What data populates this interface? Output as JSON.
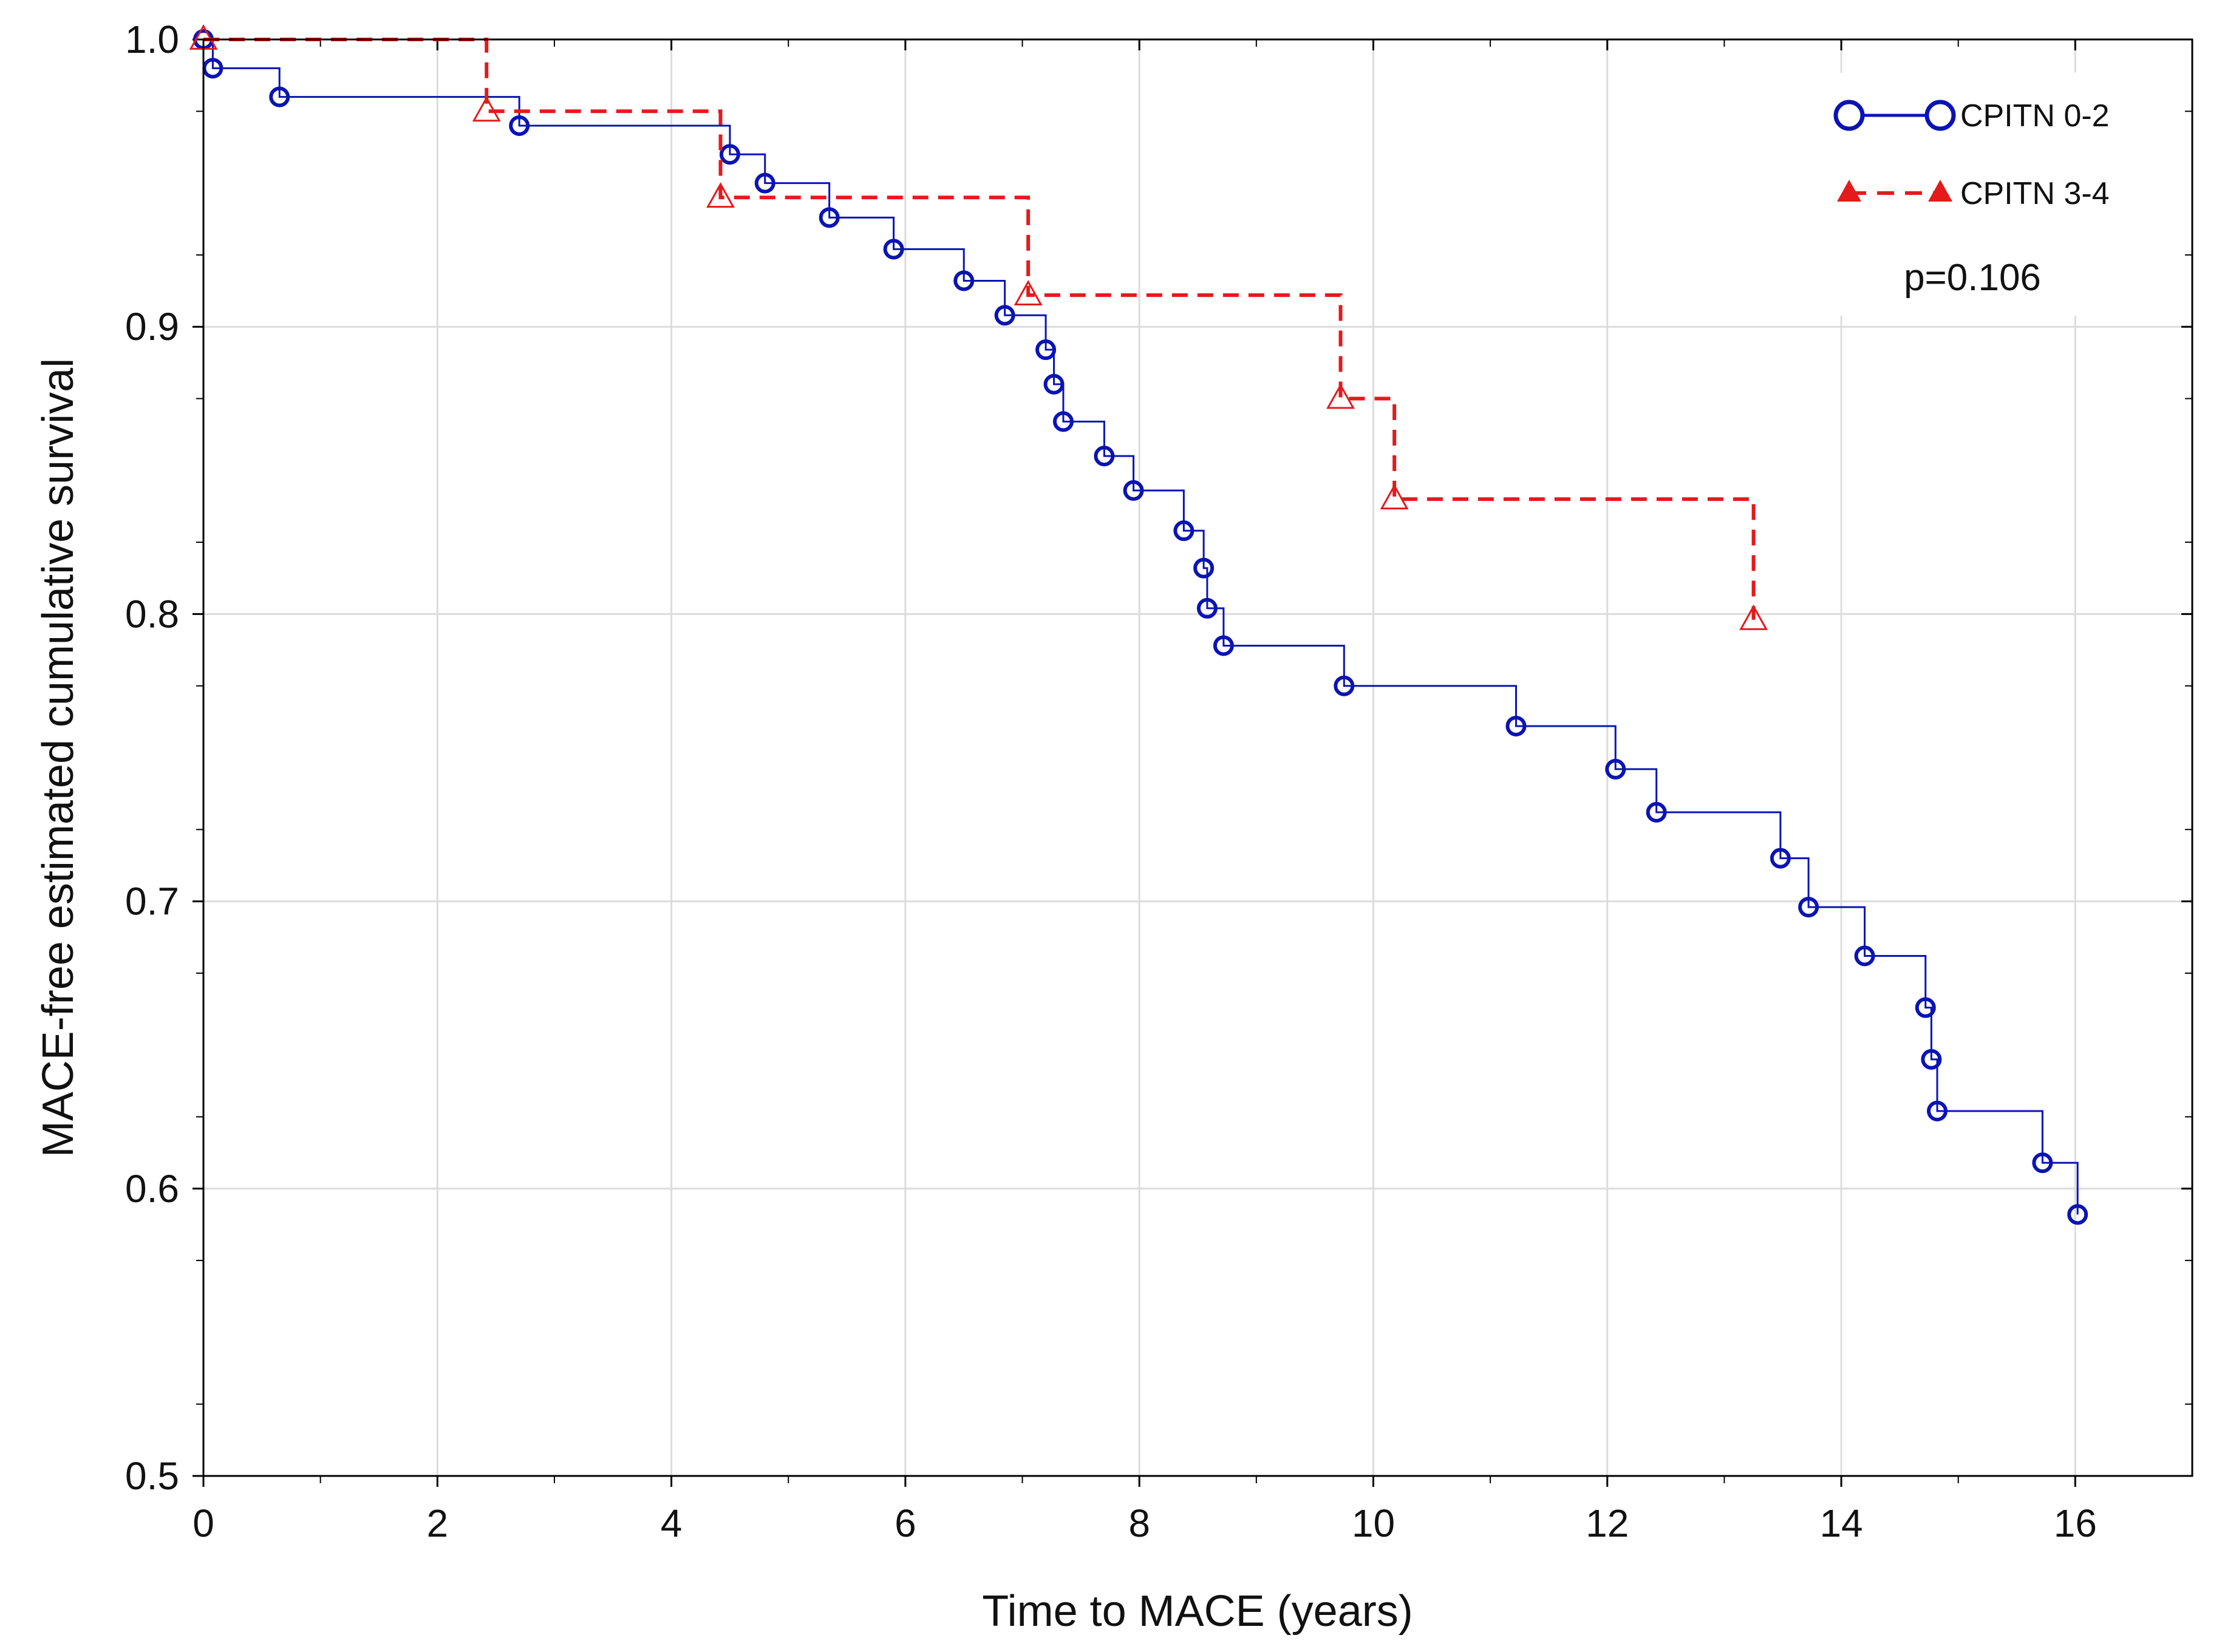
{
  "chart_data": {
    "type": "line",
    "subtype": "kaplan-meier",
    "title": "",
    "xlabel": "Time to MACE (years)",
    "ylabel": "MACE-free estimated cumulative survival",
    "xlim": [
      0,
      17
    ],
    "ylim": [
      0.5,
      1.0
    ],
    "xticks": [
      "0",
      "2",
      "4",
      "6",
      "8",
      "10",
      "12",
      "14",
      "16"
    ],
    "yticks": [
      "0.5",
      "0.6",
      "0.7",
      "0.8",
      "0.9",
      "1.0"
    ],
    "grid": true,
    "legend_position": "top-right",
    "annotation": "p=0.106",
    "series": [
      {
        "name": "CPITN 0-2",
        "color": "#0a14b4",
        "line_style": "solid",
        "marker": "circle",
        "steps": [
          [
            0.0,
            1.0
          ],
          [
            0.08,
            0.99
          ],
          [
            0.65,
            0.98
          ],
          [
            2.7,
            0.97
          ],
          [
            4.5,
            0.96
          ],
          [
            4.8,
            0.95
          ],
          [
            5.35,
            0.938
          ],
          [
            5.9,
            0.927
          ],
          [
            6.5,
            0.916
          ],
          [
            6.85,
            0.904
          ],
          [
            7.2,
            0.892
          ],
          [
            7.27,
            0.88
          ],
          [
            7.35,
            0.867
          ],
          [
            7.7,
            0.855
          ],
          [
            7.95,
            0.843
          ],
          [
            8.38,
            0.829
          ],
          [
            8.55,
            0.816
          ],
          [
            8.58,
            0.802
          ],
          [
            8.72,
            0.789
          ],
          [
            9.75,
            0.775
          ],
          [
            11.22,
            0.761
          ],
          [
            12.07,
            0.746
          ],
          [
            12.42,
            0.731
          ],
          [
            13.48,
            0.715
          ],
          [
            13.72,
            0.698
          ],
          [
            14.2,
            0.681
          ],
          [
            14.72,
            0.663
          ],
          [
            14.77,
            0.645
          ],
          [
            14.82,
            0.627
          ],
          [
            15.72,
            0.609
          ],
          [
            16.02,
            0.591
          ]
        ]
      },
      {
        "name": "CPITN 3-4",
        "color": "#e41a1c",
        "line_style": "dashed",
        "marker": "triangle",
        "steps": [
          [
            0.0,
            1.0
          ],
          [
            2.42,
            0.975
          ],
          [
            4.42,
            0.945
          ],
          [
            7.05,
            0.911
          ],
          [
            9.72,
            0.875
          ],
          [
            10.18,
            0.84
          ],
          [
            13.25,
            0.798
          ]
        ]
      }
    ]
  }
}
